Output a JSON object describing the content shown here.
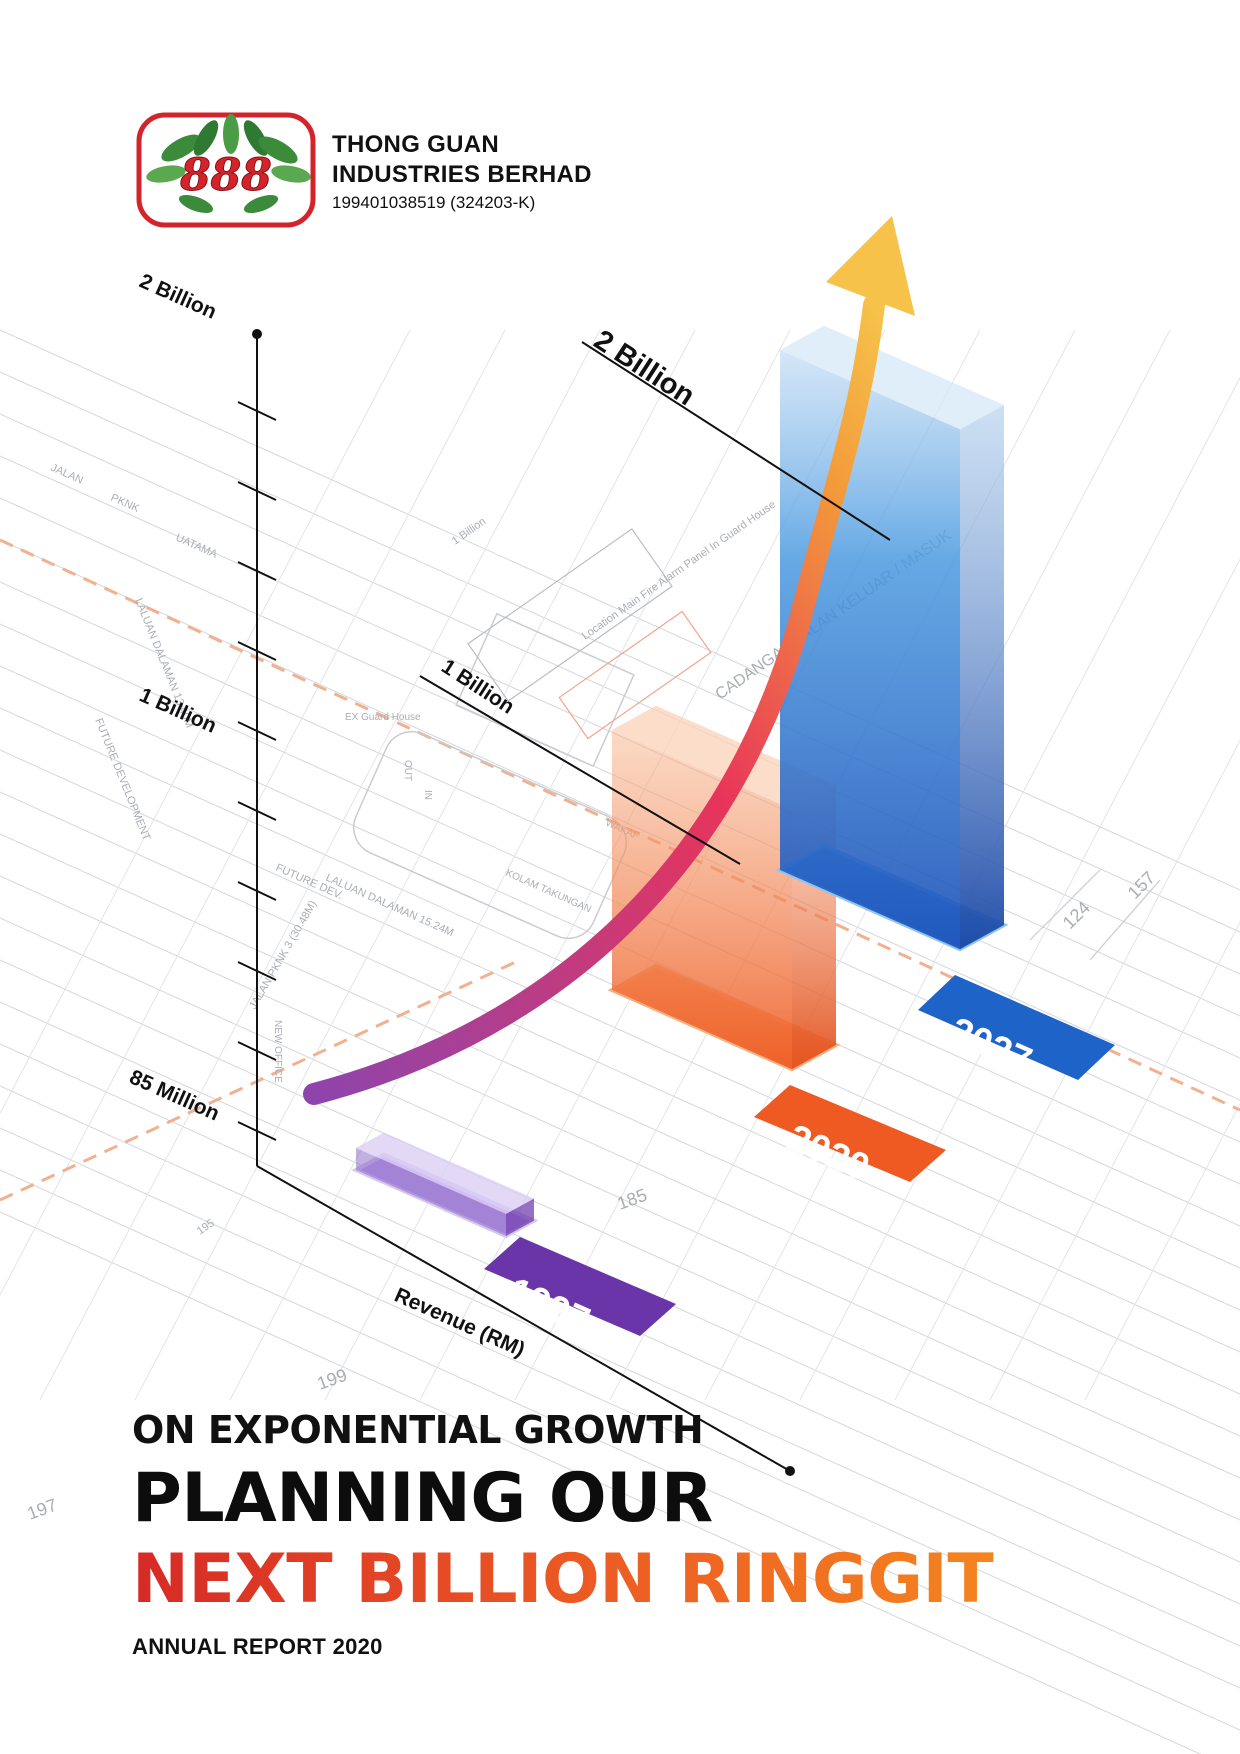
{
  "company": {
    "name_line1": "THONG GUAN",
    "name_line2": "INDUSTRIES BERHAD",
    "registration": "199401038519 (324203-K)",
    "logo_text": "888"
  },
  "chart_data": {
    "type": "bar",
    "categories": [
      "1997",
      "2020",
      "2027"
    ],
    "ylabel": "Revenue (RM)",
    "tick_labels": [
      "2 Billion",
      "1 Billion",
      "85 Million"
    ],
    "annotations": [
      "2 Billion",
      "1 Billion"
    ],
    "series": [
      {
        "values": [
          85000000,
          1000000000,
          2000000000
        ]
      }
    ],
    "trend": "exponential-arrow",
    "colors": {
      "1997": "#6a35a8",
      "2020": "#ee5a22",
      "2027": "#1e64c8",
      "arrow_start": "#8e44ad",
      "arrow_mid": "#e8345a",
      "arrow_end": "#f7c24a"
    },
    "background_labels": [
      "JALAN",
      "PKNK",
      "UATAMA",
      "LALUAN DALAMAN 13.40M",
      "FUTURE DEVELOPMENT",
      "1 Billion",
      "Location Main Fire Alarm Panel In Guard House",
      "CADANGAN JALAN KELUAR / MASUK",
      "124",
      "157",
      "185",
      "199",
      "197",
      "195",
      "JALAN PKNK 3 (30.48M)",
      "LALUAN DALAMAN 15.24M",
      "NEW OFFICE",
      "FUTURE DEV.",
      "EX Guard House",
      "OUT",
      "IN",
      "KOLAM TAKUNGAN",
      "WAKAF"
    ]
  },
  "titles": {
    "kicker": "ON EXPONENTIAL GROWTH",
    "main": "PLANNING OUR",
    "accent": "NEXT BILLION RINGGIT",
    "report": "ANNUAL REPORT 2020"
  }
}
